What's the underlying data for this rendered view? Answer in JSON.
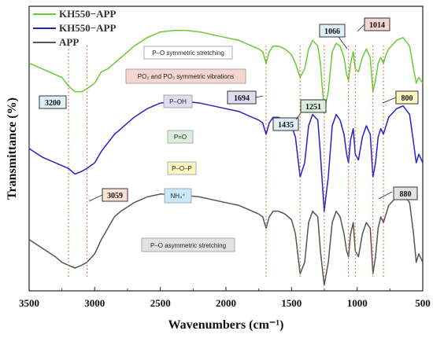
{
  "chart_data": {
    "type": "line",
    "xlabel": "Wavenumbers (cm⁻¹)",
    "ylabel": "Transmittance (%)",
    "xlim": [
      3500,
      500
    ],
    "x_ticks": [
      "3500",
      "3000",
      "2500",
      "2000",
      "1500",
      "1000",
      "500"
    ],
    "grid": false,
    "legend_position": "top-left",
    "series": [
      {
        "name": "KH550−APP",
        "color": "#66cc33",
        "x": [
          3500,
          3400,
          3300,
          3250,
          3200,
          3150,
          3100,
          3060,
          3000,
          2950,
          2900,
          2850,
          2800,
          2700,
          2600,
          2500,
          2400,
          2300,
          2200,
          2100,
          2000,
          1900,
          1800,
          1750,
          1720,
          1694,
          1670,
          1640,
          1600,
          1550,
          1500,
          1470,
          1435,
          1400,
          1370,
          1340,
          1300,
          1280,
          1251,
          1220,
          1190,
          1160,
          1130,
          1100,
          1080,
          1066,
          1050,
          1030,
          1014,
          990,
          960,
          930,
          900,
          880,
          860,
          840,
          820,
          800,
          780,
          760,
          700,
          650,
          600,
          570,
          550,
          530,
          500
        ],
        "y": [
          80,
          78,
          76,
          75,
          72,
          70,
          70,
          71,
          73,
          77,
          78,
          80,
          82,
          86,
          89,
          91,
          91.5,
          91.5,
          91,
          90,
          89,
          88,
          86,
          85,
          84,
          80,
          84,
          86,
          86,
          85,
          83,
          80,
          75,
          78,
          85,
          88,
          86,
          80,
          63,
          70,
          84,
          87,
          86,
          82,
          76,
          74,
          80,
          84,
          78,
          77,
          82,
          85,
          82,
          70,
          74,
          80,
          82,
          80,
          83,
          85,
          88,
          89,
          86,
          78,
          73,
          75,
          73
        ]
      },
      {
        "name": "KH550−APP",
        "color": "#2222cc",
        "x": [
          3500,
          3400,
          3300,
          3250,
          3200,
          3150,
          3100,
          3060,
          3000,
          2950,
          2900,
          2850,
          2800,
          2700,
          2600,
          2500,
          2400,
          2300,
          2200,
          2100,
          2000,
          1900,
          1800,
          1750,
          1720,
          1694,
          1670,
          1640,
          1600,
          1550,
          1500,
          1470,
          1435,
          1400,
          1370,
          1340,
          1300,
          1280,
          1251,
          1220,
          1190,
          1160,
          1130,
          1100,
          1080,
          1066,
          1050,
          1030,
          1014,
          990,
          960,
          930,
          900,
          880,
          860,
          840,
          820,
          800,
          780,
          760,
          700,
          650,
          600,
          570,
          550,
          530,
          500
        ],
        "y": [
          50,
          47,
          45,
          44,
          43,
          41,
          42,
          43,
          45,
          49,
          52,
          55,
          57,
          61,
          64,
          66,
          66.5,
          66.5,
          66,
          65,
          64,
          63,
          61,
          60,
          59,
          55,
          59,
          61,
          61,
          60,
          58,
          54,
          40,
          45,
          58,
          62,
          60,
          48,
          28,
          40,
          58,
          62,
          60,
          55,
          48,
          45,
          53,
          57,
          48,
          46,
          54,
          58,
          55,
          40,
          45,
          54,
          57,
          55,
          58,
          61,
          64,
          65,
          62,
          52,
          45,
          48,
          45
        ]
      },
      {
        "name": "APP",
        "color": "#555555",
        "x": [
          3500,
          3400,
          3300,
          3250,
          3200,
          3150,
          3100,
          3060,
          3000,
          2950,
          2900,
          2850,
          2800,
          2700,
          2600,
          2500,
          2400,
          2300,
          2200,
          2100,
          2000,
          1900,
          1800,
          1750,
          1720,
          1694,
          1670,
          1640,
          1600,
          1550,
          1500,
          1470,
          1435,
          1400,
          1370,
          1340,
          1300,
          1280,
          1251,
          1220,
          1190,
          1160,
          1130,
          1100,
          1080,
          1066,
          1050,
          1030,
          1014,
          990,
          960,
          930,
          900,
          880,
          860,
          840,
          820,
          800,
          780,
          760,
          700,
          650,
          600,
          570,
          550,
          530,
          500
        ],
        "y": [
          18,
          15,
          12,
          10,
          9,
          8,
          9,
          10,
          13,
          18,
          22,
          26,
          28,
          31,
          33,
          34,
          34,
          33.5,
          33,
          32,
          31,
          30,
          28,
          27,
          26,
          22,
          26,
          28,
          28,
          27,
          25,
          20,
          6,
          10,
          24,
          28,
          26,
          14,
          2,
          10,
          24,
          28,
          26,
          20,
          14,
          12,
          20,
          24,
          14,
          12,
          20,
          24,
          22,
          6,
          12,
          22,
          26,
          24,
          27,
          30,
          33,
          34,
          31,
          20,
          10,
          13,
          10
        ]
      }
    ],
    "markers": [
      {
        "x": 3200,
        "label": "3200"
      },
      {
        "x": 3059,
        "label": "3059"
      },
      {
        "x": 1694,
        "label": "1694"
      },
      {
        "x": 1435,
        "label": "1435"
      },
      {
        "x": 1251,
        "label": "1251"
      },
      {
        "x": 1066,
        "label": "1066"
      },
      {
        "x": 1014,
        "label": "1014"
      },
      {
        "x": 880,
        "label": "880"
      },
      {
        "x": 800,
        "label": "800"
      }
    ],
    "annotations": [
      {
        "key": "p_o_sym",
        "text": "P–O symmetric stretching",
        "fill": "#ffffff"
      },
      {
        "key": "po2",
        "text": "PO₂ and PO₃ symmetric vibrations",
        "fill": "#f5d5cf"
      },
      {
        "key": "p_oh",
        "text": "P–OH",
        "fill": "#e2dcf2"
      },
      {
        "key": "p_eq_o",
        "text": "P=O",
        "fill": "#d9efd9"
      },
      {
        "key": "p_o_p",
        "text": "P–O–P",
        "fill": "#fff5c2"
      },
      {
        "key": "nh4",
        "text": "NH₄⁺",
        "fill": "#c9e9f9"
      },
      {
        "key": "p_o_asym",
        "text": "P–O asymmetric stretching",
        "fill": "#e2e2e2"
      }
    ]
  }
}
